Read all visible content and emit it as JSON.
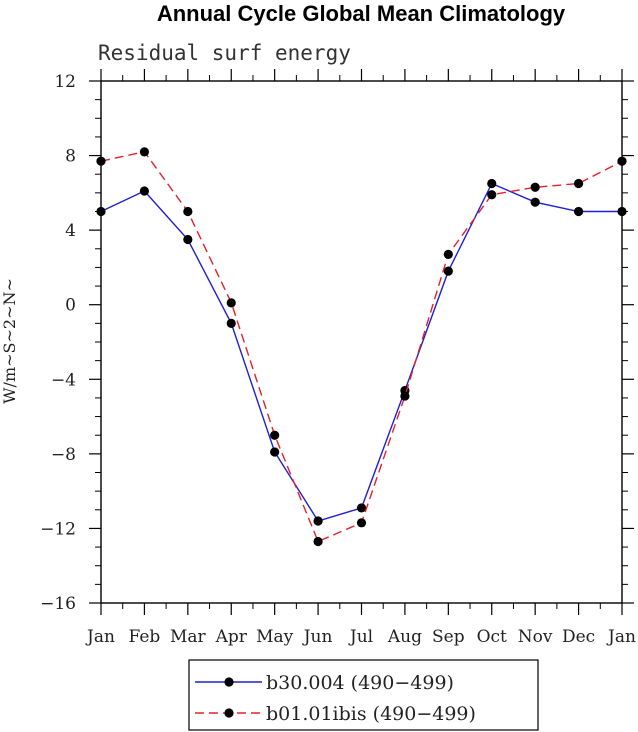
{
  "chart_data": {
    "type": "line",
    "title": "Annual Cycle Global Mean Climatology",
    "subtitle": "Residual surf energy",
    "xlabel": "",
    "ylabel": "W/m~S~2~N~",
    "categories": [
      "Jan",
      "Feb",
      "Mar",
      "Apr",
      "May",
      "Jun",
      "Jul",
      "Aug",
      "Sep",
      "Oct",
      "Nov",
      "Dec",
      "Jan"
    ],
    "ylim": [
      -16,
      12
    ],
    "yticks": [
      "12",
      "8",
      "4",
      "0",
      "−4",
      "−8",
      "−12",
      "−16"
    ],
    "ytick_values": [
      12,
      8,
      4,
      0,
      -4,
      -8,
      -12,
      -16
    ],
    "grid": false,
    "legend_position": "bottom",
    "series": [
      {
        "name": "b30.004 (490−499)",
        "color": "#1f1fd6",
        "style": "solid",
        "values": [
          5.0,
          6.1,
          3.5,
          -1.0,
          -7.9,
          -11.6,
          -10.9,
          -4.6,
          1.8,
          6.5,
          5.5,
          5.0,
          5.0
        ]
      },
      {
        "name": "b01.01ibis (490−499)",
        "color": "#e8202a",
        "style": "dashed",
        "values": [
          7.7,
          8.2,
          5.0,
          0.1,
          -7.0,
          -12.7,
          -11.7,
          -4.9,
          2.7,
          5.9,
          6.3,
          6.5,
          7.7
        ]
      }
    ]
  }
}
